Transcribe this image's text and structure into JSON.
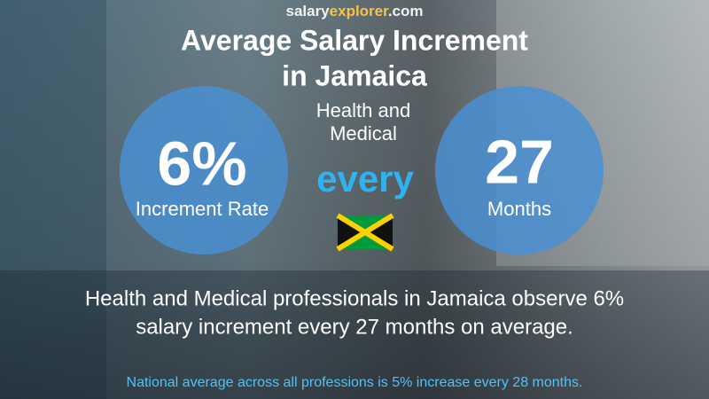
{
  "brand": {
    "parts": [
      "salary",
      "explorer",
      ".com"
    ]
  },
  "title": {
    "lines": [
      "Average Salary Increment",
      "in Jamaica"
    ]
  },
  "subtitle": {
    "lines": [
      "Health and",
      "Medical"
    ]
  },
  "left_circle": {
    "value": "6%",
    "label": "Increment Rate"
  },
  "connector": "every",
  "right_circle": {
    "value": "27",
    "label": "Months"
  },
  "summary": {
    "lines": [
      "Health and Medical professionals in Jamaica observe 6%",
      "salary increment every 27 months on average."
    ]
  },
  "footer": "National average across all professions is 5% increase every 28 months."
}
